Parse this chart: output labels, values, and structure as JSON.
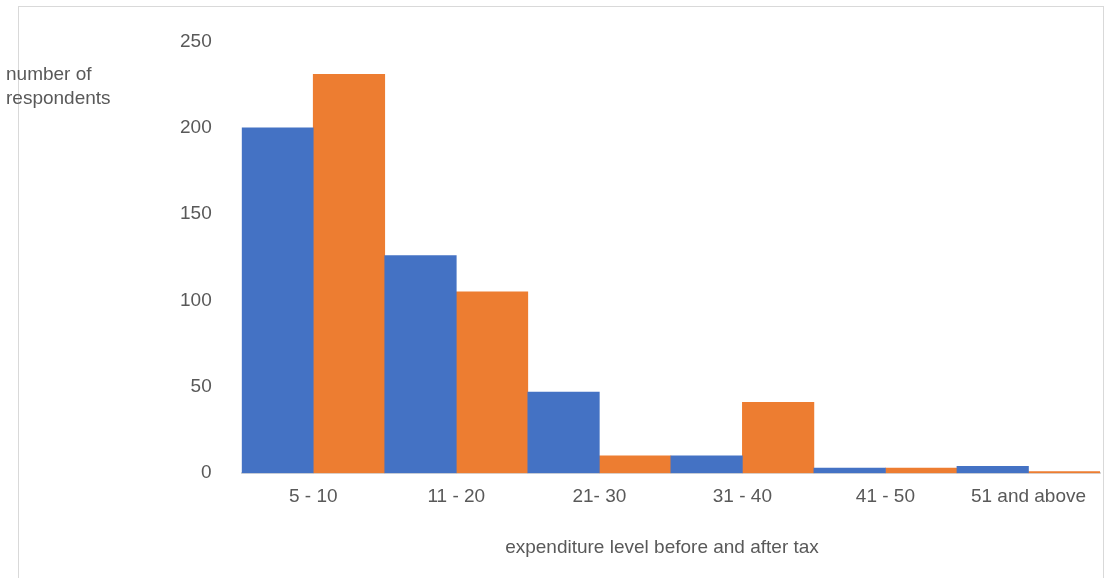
{
  "chart_data": {
    "type": "bar",
    "xlabel": "expenditure level before and after tax",
    "ylabel": "number of respondents",
    "categories": [
      "5 - 10",
      "11 - 20",
      "21- 30",
      "31 - 40",
      "41 - 50",
      "51 and above"
    ],
    "series": [
      {
        "color": "#4472c4",
        "values": [
          200,
          126,
          47,
          10,
          3,
          4
        ]
      },
      {
        "color": "#ed7d31",
        "values": [
          231,
          105,
          10,
          41,
          3,
          1
        ]
      }
    ],
    "ylim": [
      0,
      250
    ],
    "yticks": [
      0,
      50,
      100,
      150,
      200,
      250
    ],
    "grid": false,
    "legend": false
  }
}
